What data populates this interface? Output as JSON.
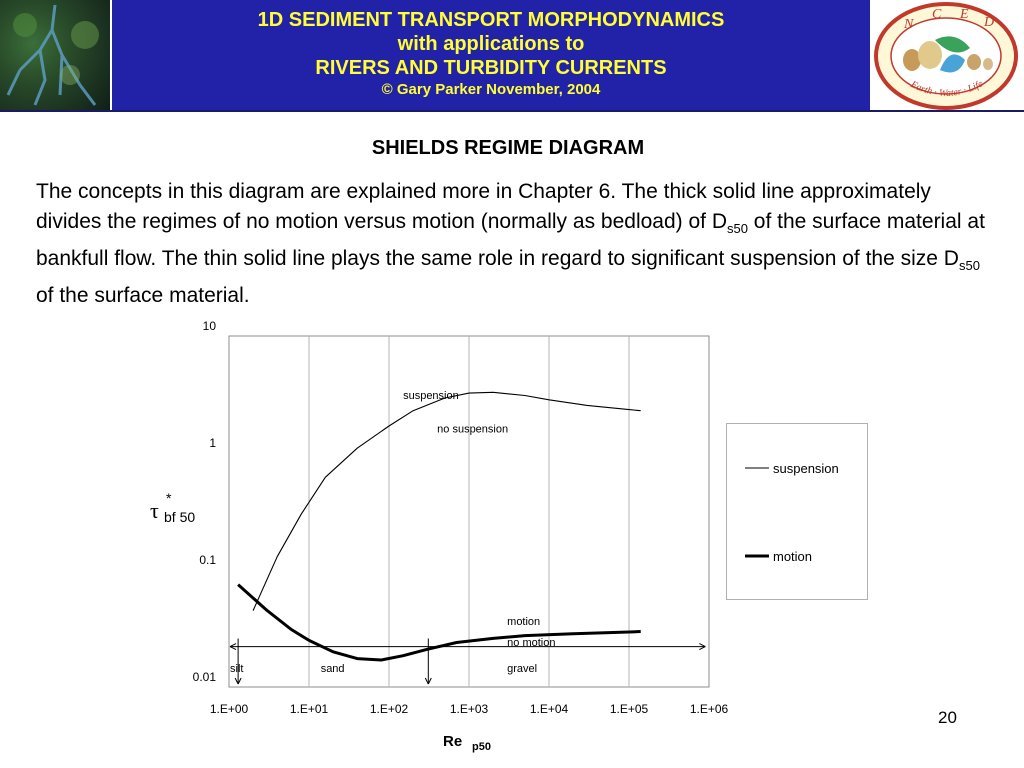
{
  "header": {
    "line1": "1D SEDIMENT TRANSPORT MORPHODYNAMICS",
    "line2": "with applications to",
    "line3": "RIVERS AND TURBIDITY CURRENTS",
    "line4": "© Gary Parker November, 2004",
    "logo_letters": [
      "N",
      "C",
      "E",
      "D"
    ],
    "logo_motto": "Earth · Water · Life",
    "banner_color": "#2222a8",
    "banner_text_color": "#ffff33"
  },
  "slide": {
    "title": "SHIELDS REGIME DIAGRAM",
    "p1_a": "The concepts in this diagram are explained more in Chapter 6.  The thick solid line approximately divides the regimes of no motion versus motion (normally as bedload) of D",
    "p1_sub1": "s50",
    "p1_b": " of the surface material at bankfull flow.  The thin solid line plays the same role in regard to significant suspension of the size D",
    "p1_sub2": "s50",
    "p1_c": " of the surface material.",
    "page_number": "20"
  },
  "chart_data": {
    "type": "line",
    "x_scale": "log",
    "y_scale": "log",
    "xlim": [
      1,
      1000000
    ],
    "ylim": [
      0.01,
      10
    ],
    "x_tick_labels": [
      "1.E+00",
      "1.E+01",
      "1.E+02",
      "1.E+03",
      "1.E+04",
      "1.E+05",
      "1.E+06"
    ],
    "y_tick_labels": [
      "0.01",
      "0.1",
      "1",
      "10"
    ],
    "xlabel_main": "Re",
    "xlabel_sub": "p50",
    "ylabel_main": "τ",
    "ylabel_sup": "*",
    "ylabel_sub": "bf 50",
    "grid": "vertical",
    "legend_position": "right",
    "series": [
      {
        "name": "suspension",
        "style": "thin",
        "points": [
          [
            2,
            0.045
          ],
          [
            4,
            0.13
          ],
          [
            8,
            0.3
          ],
          [
            16,
            0.62
          ],
          [
            40,
            1.1
          ],
          [
            100,
            1.7
          ],
          [
            200,
            2.3
          ],
          [
            500,
            2.95
          ],
          [
            1000,
            3.25
          ],
          [
            2000,
            3.3
          ],
          [
            5000,
            3.1
          ],
          [
            10000,
            2.85
          ],
          [
            30000,
            2.55
          ],
          [
            100000,
            2.35
          ],
          [
            140000,
            2.3
          ]
        ]
      },
      {
        "name": "motion",
        "style": "thick",
        "points": [
          [
            1.3,
            0.075
          ],
          [
            3,
            0.045
          ],
          [
            6,
            0.031
          ],
          [
            10,
            0.025
          ],
          [
            20,
            0.02
          ],
          [
            40,
            0.0175
          ],
          [
            80,
            0.017
          ],
          [
            150,
            0.0185
          ],
          [
            300,
            0.021
          ],
          [
            700,
            0.024
          ],
          [
            2000,
            0.026
          ],
          [
            5000,
            0.0275
          ],
          [
            20000,
            0.0285
          ],
          [
            100000,
            0.0295
          ],
          [
            140000,
            0.0298
          ]
        ]
      }
    ],
    "annotations": {
      "suspension": "suspension",
      "no_suspension": "no suspension",
      "motion": "motion",
      "no_motion": "no motion",
      "silt": "silt",
      "sand": "sand",
      "gravel": "gravel"
    },
    "regime_boundaries": [
      1.3,
      310
    ],
    "legend": {
      "suspension": "suspension",
      "motion": "motion"
    }
  }
}
